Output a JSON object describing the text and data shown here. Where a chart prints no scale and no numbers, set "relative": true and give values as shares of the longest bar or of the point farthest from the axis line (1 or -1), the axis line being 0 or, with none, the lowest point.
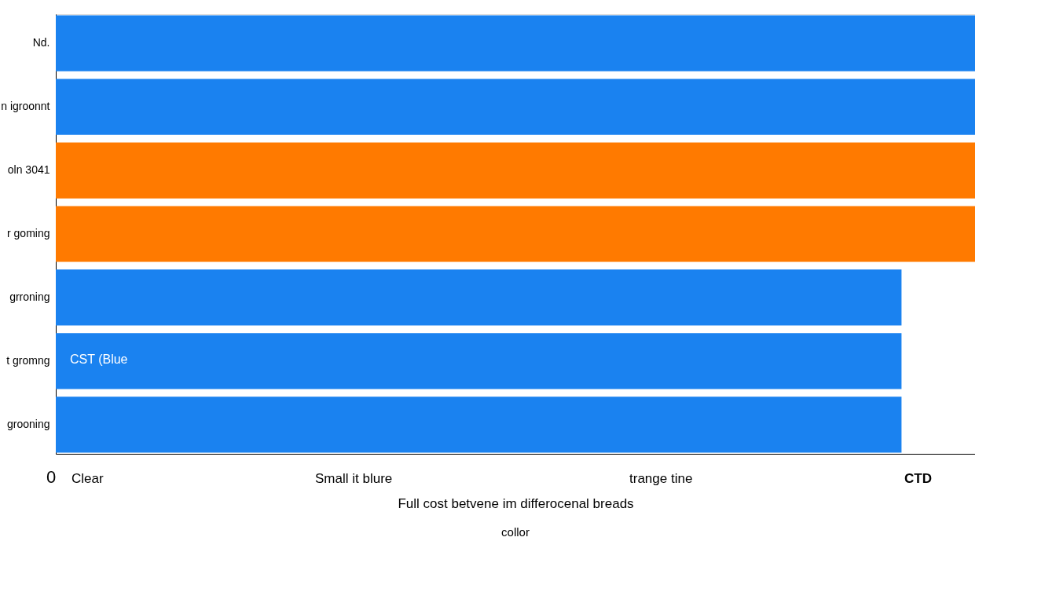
{
  "chart_data": {
    "type": "bar",
    "orientation": "horizontal",
    "relative": true,
    "categories": [
      "Nd.",
      "n igroonnt",
      "oln 3041",
      "r goming",
      "grroning",
      "t gromng",
      "grooning"
    ],
    "values": [
      1,
      1,
      1,
      1,
      0.92,
      0.92,
      0.92
    ],
    "colors": [
      "#1a82f0",
      "#1a82f0",
      "#ff7a00",
      "#ff7a00",
      "#1a82f0",
      "#1a82f0",
      "#1a82f0"
    ],
    "xlabel": "Full cost betvene im differocenal breads",
    "annotations": [
      "0",
      "Clear",
      "Small it blure",
      "trange tine",
      "CTD",
      "CST (Blue",
      "collor"
    ],
    "grid": false
  }
}
